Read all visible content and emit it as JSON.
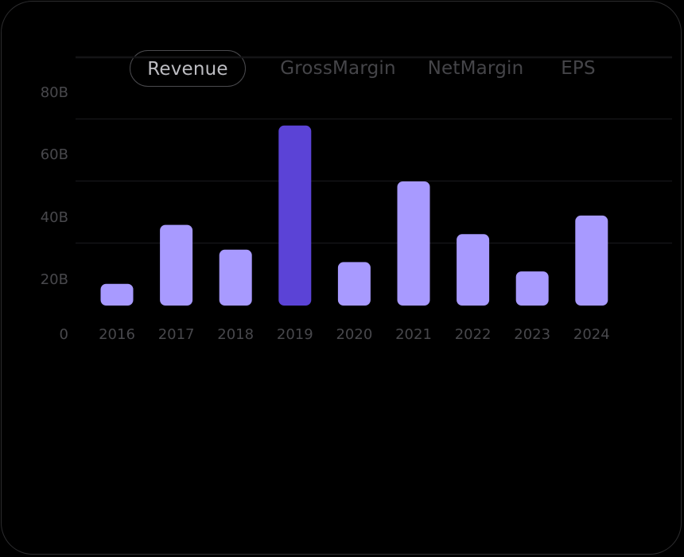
{
  "tabs": [
    {
      "label": "Revenue",
      "active": true
    },
    {
      "label": "GrossMargin",
      "active": false
    },
    {
      "label": "NetMargin",
      "active": false
    },
    {
      "label": "EPS",
      "active": false
    }
  ],
  "colors": {
    "bar": "#a89aff",
    "bar_highlight": "#5b43d6",
    "grid": "#141416",
    "tick_text": "#48484c"
  },
  "chart_data": {
    "type": "bar",
    "categories": [
      "2016",
      "2017",
      "2018",
      "2019",
      "2020",
      "2021",
      "2022",
      "2023",
      "2024"
    ],
    "values": [
      7,
      26,
      18,
      58,
      14,
      40,
      23,
      11,
      29
    ],
    "highlight_index": 3,
    "ylim": [
      0,
      80
    ],
    "yticks": [
      {
        "value": 0,
        "label": "0"
      },
      {
        "value": 20,
        "label": "20B"
      },
      {
        "value": 40,
        "label": "40B"
      },
      {
        "value": 60,
        "label": "60B"
      },
      {
        "value": 80,
        "label": "80B"
      }
    ],
    "grid": true,
    "title": "",
    "xlabel": "",
    "ylabel": ""
  }
}
